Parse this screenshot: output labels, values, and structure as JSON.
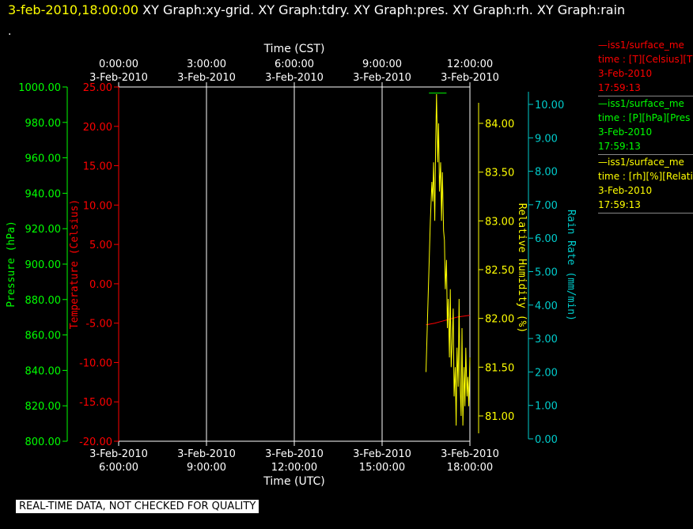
{
  "header": {
    "date_time": "3-feb-2010,18:00:00",
    "graphs": "XY Graph:xy-grid.  XY Graph:tdry.  XY Graph:pres.  XY Graph:rh.  XY Graph:rain",
    "dot": "."
  },
  "banner": "REAL-TIME DATA, NOT CHECKED FOR QUALITY",
  "legend": [
    {
      "line1": "—iss1/surface_me",
      "line2": "time : [T][Celsius][T",
      "line3": "3-Feb-2010",
      "line4": "17:59:13",
      "color": "#ff0000"
    },
    {
      "line1": "—iss1/surface_me",
      "line2": "time : [P][hPa][Pres",
      "line3": "3-Feb-2010",
      "line4": "17:59:13",
      "color": "#00ff00"
    },
    {
      "line1": "—iss1/surface_me",
      "line2": "time : [rh][%][Relati",
      "line3": "3-Feb-2010",
      "line4": "17:59:13",
      "color": "#ffff00"
    }
  ],
  "chart_data": {
    "type": "line",
    "top_axis": {
      "label": "Time (CST)",
      "ticks": [
        {
          "time": "0:00:00",
          "date": "3-Feb-2010"
        },
        {
          "time": "3:00:00",
          "date": "3-Feb-2010"
        },
        {
          "time": "6:00:00",
          "date": "3-Feb-2010"
        },
        {
          "time": "9:00:00",
          "date": "3-Feb-2010"
        },
        {
          "time": "12:00:00",
          "date": "3-Feb-2010"
        }
      ]
    },
    "bottom_axis": {
      "label": "Time (UTC)",
      "ticks": [
        {
          "date": "3-Feb-2010",
          "time": "6:00:00"
        },
        {
          "date": "3-Feb-2010",
          "time": "9:00:00"
        },
        {
          "date": "3-Feb-2010",
          "time": "12:00:00"
        },
        {
          "date": "3-Feb-2010",
          "time": "15:00:00"
        },
        {
          "date": "3-Feb-2010",
          "time": "18:00:00"
        }
      ],
      "xlim_utc_hours": [
        6,
        18
      ]
    },
    "y_axes": [
      {
        "id": "pressure",
        "label": "Pressure (hPa)",
        "color": "#00ff00",
        "ylim": [
          800,
          1000
        ],
        "ticks": [
          "1000.00",
          "980.00",
          "960.00",
          "940.00",
          "920.00",
          "900.00",
          "880.00",
          "860.00",
          "840.00",
          "820.00",
          "800.00"
        ]
      },
      {
        "id": "temperature",
        "label": "Temperature (Celsius)",
        "color": "#ff0000",
        "ylim": [
          -20,
          25
        ],
        "ticks": [
          "25.00",
          "20.00",
          "15.00",
          "10.00",
          "5.00",
          "0.00",
          "-5.00",
          "-10.00",
          "-15.00",
          "-20.00"
        ]
      },
      {
        "id": "rh",
        "label": "Relative Humidity (%)",
        "color": "#ffff00",
        "ylim": [
          80.75,
          84.3
        ],
        "ticks": [
          "84.00",
          "83.50",
          "83.00",
          "82.50",
          "82.00",
          "81.50",
          "81.00"
        ]
      },
      {
        "id": "rain",
        "label": "Rain Rate (mm/min)",
        "color": "#00cccc",
        "ylim": [
          0,
          10.3
        ],
        "ticks": [
          "10.00",
          "9.00",
          "8.00",
          "7.00",
          "6.00",
          "5.00",
          "4.00",
          "3.00",
          "2.00",
          "1.00",
          "0.00"
        ]
      }
    ],
    "series": [
      {
        "name": "iss1/surface_me time : [T][Celsius][T",
        "axis": "temperature",
        "color": "#ff0000",
        "x": [
          16.5,
          16.8,
          17.0,
          17.2,
          17.4,
          17.6,
          17.8,
          18.0
        ],
        "y": [
          -5.2,
          -5.0,
          -4.8,
          -4.6,
          -4.4,
          -4.2,
          -4.1,
          -4.0
        ]
      },
      {
        "name": "iss1/surface_me time : [P][hPa][Pres",
        "axis": "pressure",
        "color": "#00ff00",
        "x": [
          16.6,
          16.8,
          17.0,
          17.2
        ],
        "y": [
          996.5,
          996.5,
          996.5,
          996.5
        ]
      },
      {
        "name": "iss1/surface_me time : [rh][%][Relati",
        "axis": "rh",
        "color": "#ffff00",
        "x": [
          16.5,
          16.55,
          16.6,
          16.65,
          16.7,
          16.73,
          16.76,
          16.8,
          16.83,
          16.86,
          16.9,
          16.93,
          16.96,
          17.0,
          17.03,
          17.06,
          17.1,
          17.13,
          17.16,
          17.2,
          17.23,
          17.26,
          17.3,
          17.33,
          17.36,
          17.4,
          17.43,
          17.46,
          17.5,
          17.53,
          17.56,
          17.6,
          17.63,
          17.66,
          17.7,
          17.73,
          17.76,
          17.8,
          17.83,
          17.86,
          17.9,
          17.93,
          17.96,
          18.0
        ],
        "y": [
          81.45,
          82.0,
          82.5,
          83.0,
          83.4,
          83.2,
          83.6,
          83.0,
          83.8,
          84.3,
          83.6,
          84.0,
          83.3,
          83.6,
          83.0,
          83.5,
          82.9,
          82.8,
          82.3,
          82.6,
          81.9,
          82.2,
          81.6,
          82.3,
          81.5,
          81.8,
          82.1,
          81.2,
          81.5,
          80.9,
          81.7,
          81.3,
          82.2,
          81.4,
          81.0,
          81.9,
          80.9,
          81.5,
          81.1,
          81.7,
          81.2,
          81.4,
          81.1,
          81.6
        ]
      }
    ]
  }
}
